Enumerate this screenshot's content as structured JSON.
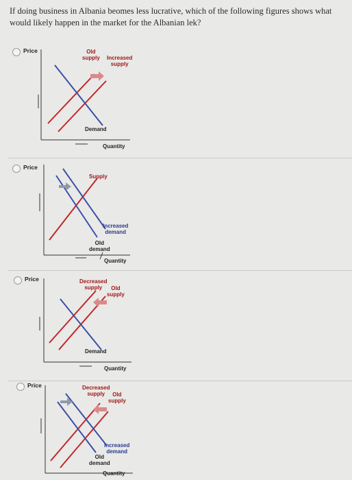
{
  "question": "If doing business in Albania beomes less lucrative, which of the following figures shows what would likely happen in the market for the Albanian lek?",
  "options": [
    {
      "price_label": "Price",
      "quantity_label": "Quantity",
      "labels": [
        "Old\nsupply",
        "Increased\nsupply",
        "Demand"
      ]
    },
    {
      "price_label": "Price",
      "quantity_label": "Quantity",
      "labels": [
        "Supply",
        "Increased\ndemand",
        "Old\ndemand"
      ]
    },
    {
      "price_label": "Price",
      "quantity_label": "Quantity",
      "labels": [
        "Decreased\nsupply",
        "Old\nsupply",
        "Demand"
      ]
    },
    {
      "price_label": "Price",
      "quantity_label": "Quantity",
      "labels": [
        "Decreased\nsupply",
        "Old\nsupply",
        "Increased\ndemand",
        "Old\ndemand"
      ]
    }
  ],
  "colors": {
    "red": "#c0282a",
    "blue": "#3b4fa8",
    "arrow_gray": "#8f9aa8",
    "arrow_red": "#d98a8a"
  }
}
